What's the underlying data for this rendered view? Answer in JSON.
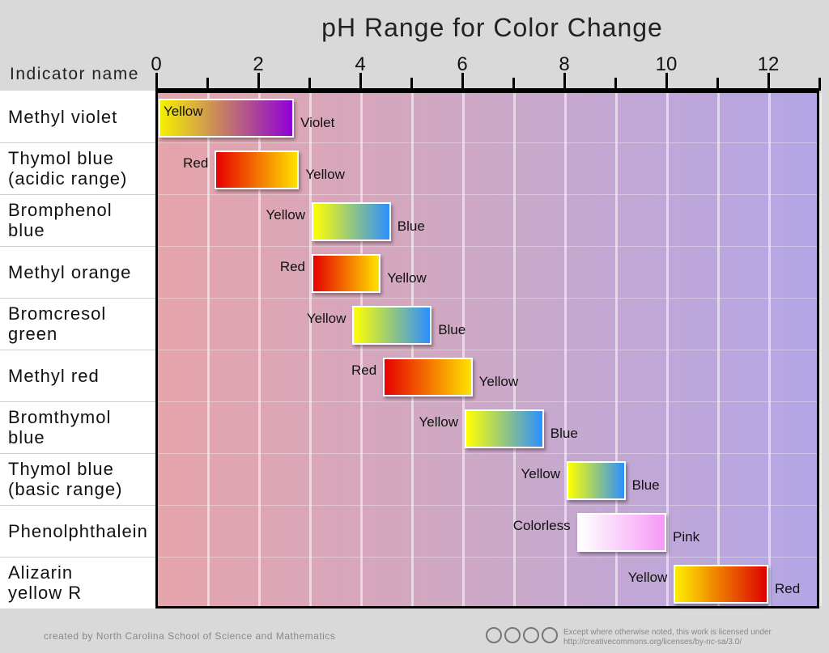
{
  "chart_data": {
    "type": "range-bar",
    "title": "pH Range for Color Change",
    "row_header": "Indicator name",
    "xlim": [
      0,
      13
    ],
    "ticks": [
      0,
      2,
      4,
      6,
      8,
      10,
      12
    ],
    "minor_ticks": [
      1,
      3,
      5,
      7,
      9,
      11,
      13
    ],
    "indicators": [
      {
        "name": "Methyl violet",
        "low": 0.0,
        "high": 2.7,
        "low_color_name": "Yellow",
        "high_color_name": "Violet",
        "low_color": "#f6f000",
        "high_color": "#8f00d6",
        "label_inside": true
      },
      {
        "name": "Thymol blue\n(acidic range)",
        "low": 1.1,
        "high": 2.8,
        "low_color_name": "Red",
        "high_color_name": "Yellow",
        "low_color": "#e60000",
        "high_color": "#ffe200",
        "label_inside": false
      },
      {
        "name": "Bromphenol\nblue",
        "low": 3.0,
        "high": 4.6,
        "low_color_name": "Yellow",
        "high_color_name": "Blue",
        "low_color": "#ffff00",
        "high_color": "#2b8fff",
        "label_inside": false
      },
      {
        "name": "Methyl orange",
        "low": 3.0,
        "high": 4.4,
        "low_color_name": "Red",
        "high_color_name": "Yellow",
        "low_color": "#e60000",
        "high_color": "#ffe200",
        "label_inside": false
      },
      {
        "name": "Bromcresol\ngreen",
        "low": 3.8,
        "high": 5.4,
        "low_color_name": "Yellow",
        "high_color_name": "Blue",
        "low_color": "#ffff00",
        "high_color": "#2b8fff",
        "label_inside": false
      },
      {
        "name": "Methyl red",
        "low": 4.4,
        "high": 6.2,
        "low_color_name": "Red",
        "high_color_name": "Yellow",
        "low_color": "#e60000",
        "high_color": "#ffe200",
        "label_inside": false
      },
      {
        "name": "Bromthymol\nblue",
        "low": 6.0,
        "high": 7.6,
        "low_color_name": "Yellow",
        "high_color_name": "Blue",
        "low_color": "#ffff00",
        "high_color": "#2b8fff",
        "label_inside": false
      },
      {
        "name": "Thymol blue\n(basic range)",
        "low": 8.0,
        "high": 9.2,
        "low_color_name": "Yellow",
        "high_color_name": "Blue",
        "low_color": "#ffff00",
        "high_color": "#2b8fff",
        "label_inside": false
      },
      {
        "name": "Phenolphthalein",
        "low": 8.2,
        "high": 10.0,
        "low_color_name": "Colorless",
        "high_color_name": "Pink",
        "low_color": "#ffffff",
        "high_color": "#f59af5",
        "label_inside": false
      },
      {
        "name": "Alizarin\nyellow R",
        "low": 10.1,
        "high": 12.0,
        "low_color_name": "Yellow",
        "high_color_name": "Red",
        "low_color": "#ffee00",
        "high_color": "#dd0000",
        "label_inside": false
      }
    ]
  },
  "footer": {
    "credit": "created by North Carolina School of Science and Mathematics",
    "license_line1": "Except where otherwise noted, this work is licensed under",
    "license_line2": "http://creativecommons.org/licenses/by-nc-sa/3.0/",
    "cc_icons": [
      "cc",
      "by",
      "nc",
      "sa"
    ]
  }
}
